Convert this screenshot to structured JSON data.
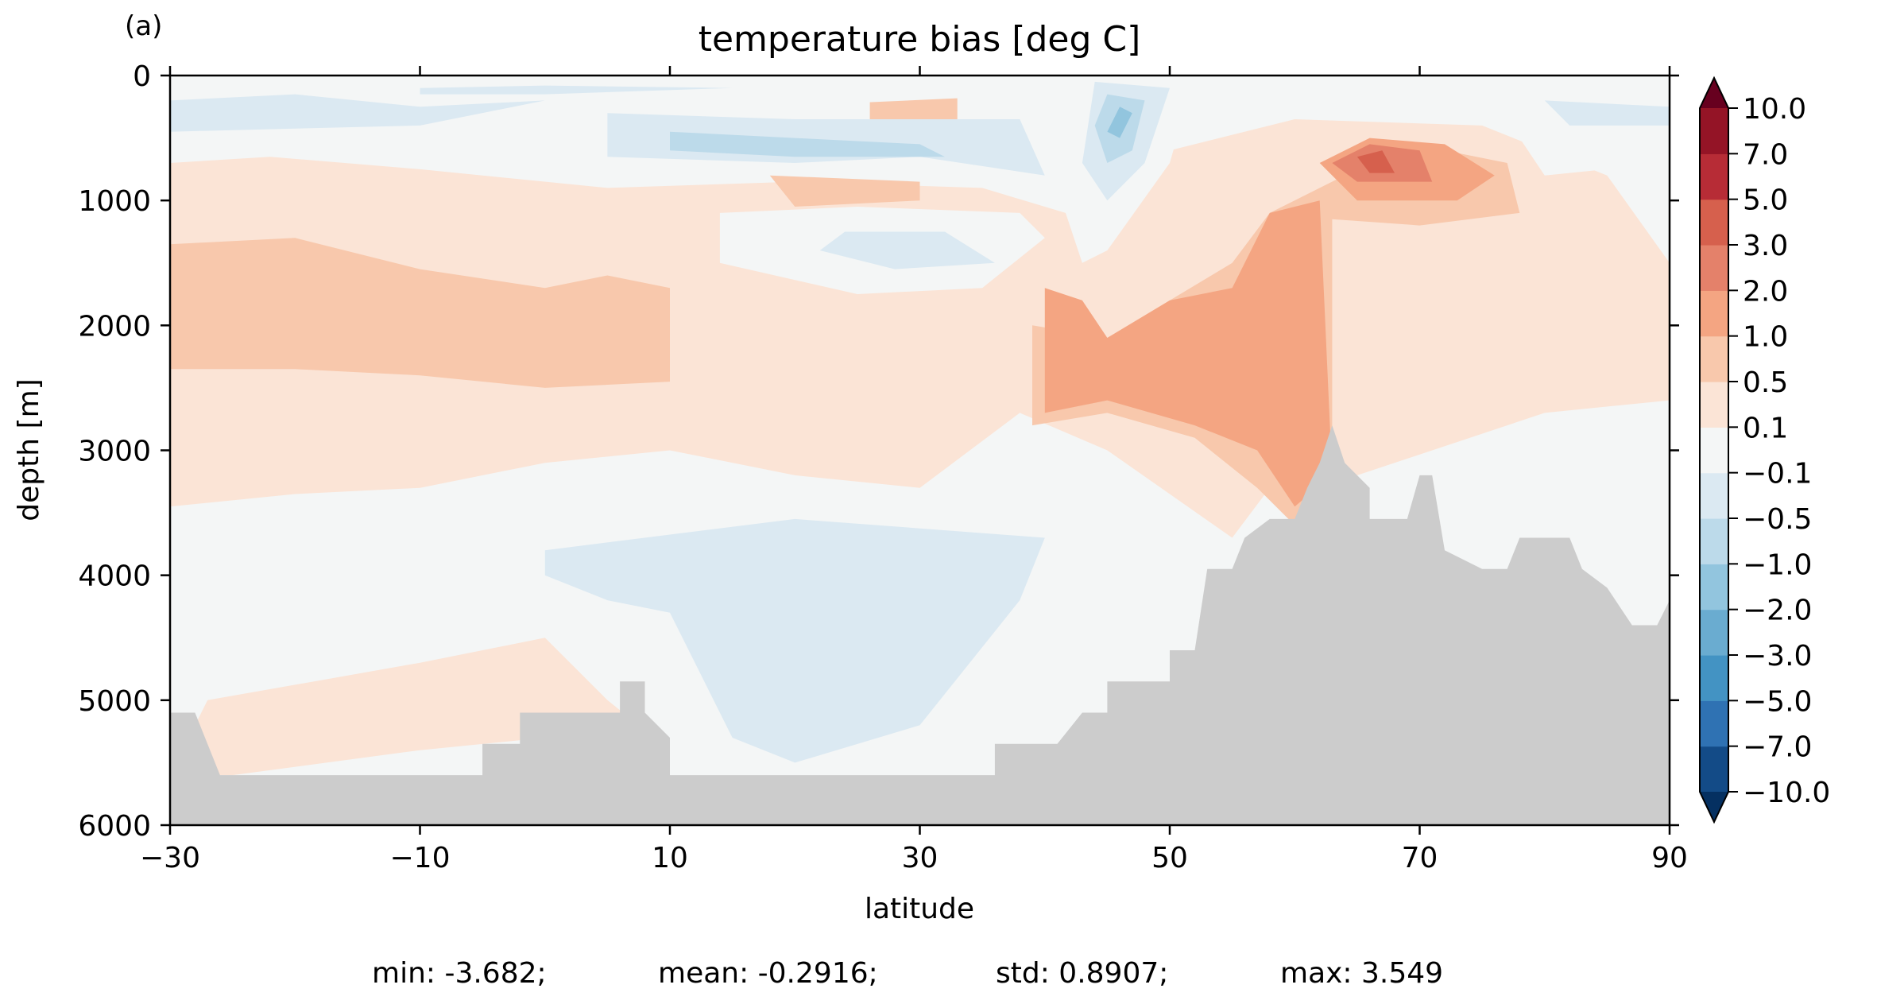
{
  "chart_data": {
    "type": "contourf",
    "panel_label": "(a)",
    "title": "temperature bias [deg C]",
    "xlabel": "latitude",
    "ylabel": "depth [m]",
    "xlim": [
      -30,
      90
    ],
    "ylim": [
      6000,
      0
    ],
    "y_inverted": true,
    "x_ticks": [
      -30,
      -10,
      10,
      30,
      50,
      70,
      90
    ],
    "x_tick_labels": [
      "−30",
      "−10",
      "10",
      "30",
      "50",
      "70",
      "90"
    ],
    "y_ticks": [
      0,
      1000,
      2000,
      3000,
      4000,
      5000,
      6000
    ],
    "y_tick_labels": [
      "0",
      "1000",
      "2000",
      "3000",
      "4000",
      "5000",
      "6000"
    ],
    "colorbar": {
      "extend": "both",
      "levels": [
        -10,
        -7,
        -5,
        -3,
        -2,
        -1,
        -0.5,
        -0.1,
        0.1,
        0.5,
        1,
        2,
        3,
        5,
        7,
        10
      ],
      "tick_labels": [
        "−10.0",
        "−7.0",
        "−5.0",
        "−3.0",
        "−2.0",
        "−1.0",
        "−0.5",
        "−0.1",
        "0.1",
        "0.5",
        "1.0",
        "2.0",
        "3.0",
        "5.0",
        "7.0",
        "10.0"
      ],
      "colors": [
        "#053061",
        "#134b87",
        "#2f72b3",
        "#4393c3",
        "#6aacd0",
        "#92c5de",
        "#bcdaea",
        "#dbe9f2",
        "#f4f6f6",
        "#fbe4d6",
        "#f8c8ac",
        "#f4a582",
        "#e4816a",
        "#d6604d",
        "#b72c36",
        "#941426",
        "#67001f"
      ]
    },
    "regions": [
      {
        "level": 0.1,
        "points": [
          [
            -30,
            700
          ],
          [
            -22,
            650
          ],
          [
            -10,
            750
          ],
          [
            5,
            900
          ],
          [
            20,
            850
          ],
          [
            35,
            900
          ],
          [
            45,
            1200
          ],
          [
            50,
            600
          ],
          [
            60,
            350
          ],
          [
            75,
            400
          ],
          [
            85,
            800
          ],
          [
            90,
            1500
          ],
          [
            90,
            2600
          ],
          [
            80,
            2700
          ],
          [
            65,
            3200
          ],
          [
            58,
            3300
          ],
          [
            55,
            3700
          ],
          [
            45,
            3000
          ],
          [
            38,
            2700
          ],
          [
            30,
            3300
          ],
          [
            20,
            3200
          ],
          [
            10,
            3000
          ],
          [
            0,
            3100
          ],
          [
            -10,
            3300
          ],
          [
            -20,
            3350
          ],
          [
            -30,
            3450
          ]
        ]
      },
      {
        "level": 0.5,
        "points": [
          [
            -30,
            1350
          ],
          [
            -20,
            1300
          ],
          [
            -10,
            1550
          ],
          [
            0,
            1700
          ],
          [
            5,
            1600
          ],
          [
            10,
            1700
          ],
          [
            10,
            2450
          ],
          [
            0,
            2500
          ],
          [
            -10,
            2400
          ],
          [
            -20,
            2350
          ],
          [
            -30,
            2350
          ]
        ]
      },
      {
        "level": 0.5,
        "points": [
          [
            39,
            2000
          ],
          [
            45,
            2100
          ],
          [
            50,
            1800
          ],
          [
            55,
            1500
          ],
          [
            58,
            1100
          ],
          [
            62,
            900
          ],
          [
            66,
            700
          ],
          [
            72,
            600
          ],
          [
            77,
            700
          ],
          [
            78,
            1100
          ],
          [
            70,
            1200
          ],
          [
            63,
            1150
          ],
          [
            63,
            3500
          ],
          [
            60,
            3600
          ],
          [
            57,
            3300
          ],
          [
            52,
            2900
          ],
          [
            45,
            2700
          ],
          [
            39,
            2800
          ]
        ]
      },
      {
        "level": 1,
        "points": [
          [
            40,
            1700
          ],
          [
            43,
            1800
          ],
          [
            45,
            2100
          ],
          [
            50,
            1800
          ],
          [
            55,
            1700
          ],
          [
            58,
            1100
          ],
          [
            62,
            1000
          ],
          [
            63,
            3200
          ],
          [
            60,
            3450
          ],
          [
            57,
            3000
          ],
          [
            52,
            2800
          ],
          [
            45,
            2600
          ],
          [
            40,
            2700
          ]
        ]
      },
      {
        "level": 1,
        "points": [
          [
            62,
            700
          ],
          [
            66,
            500
          ],
          [
            72,
            550
          ],
          [
            76,
            800
          ],
          [
            73,
            1000
          ],
          [
            65,
            1000
          ]
        ]
      },
      {
        "level": 2,
        "points": [
          [
            63,
            700
          ],
          [
            66,
            550
          ],
          [
            70,
            600
          ],
          [
            71,
            850
          ],
          [
            65,
            850
          ]
        ]
      },
      {
        "level": 3,
        "points": [
          [
            65,
            650
          ],
          [
            67,
            600
          ],
          [
            68,
            780
          ],
          [
            66,
            780
          ]
        ]
      },
      {
        "level": 0.5,
        "points": [
          [
            18,
            800
          ],
          [
            30,
            850
          ],
          [
            30,
            1000
          ],
          [
            20,
            1050
          ]
        ]
      },
      {
        "level": 0.5,
        "points": [
          [
            26,
            200
          ],
          [
            33,
            150
          ],
          [
            33,
            350
          ],
          [
            26,
            380
          ]
        ]
      },
      {
        "level": -0.1,
        "points": [
          [
            -30,
            50
          ],
          [
            -10,
            30
          ],
          [
            10,
            30
          ],
          [
            40,
            50
          ],
          [
            40,
            150
          ],
          [
            18,
            250
          ],
          [
            -10,
            500
          ],
          [
            -30,
            600
          ]
        ]
      },
      {
        "level": -0.5,
        "points": [
          [
            -30,
            200
          ],
          [
            -20,
            150
          ],
          [
            -10,
            250
          ],
          [
            0,
            200
          ],
          [
            -10,
            400
          ],
          [
            -30,
            450
          ]
        ]
      },
      {
        "level": -0.5,
        "points": [
          [
            5,
            300
          ],
          [
            20,
            350
          ],
          [
            38,
            350
          ],
          [
            40,
            800
          ],
          [
            30,
            650
          ],
          [
            20,
            700
          ],
          [
            5,
            650
          ]
        ]
      },
      {
        "level": -1,
        "points": [
          [
            10,
            450
          ],
          [
            20,
            500
          ],
          [
            30,
            550
          ],
          [
            32,
            650
          ],
          [
            20,
            650
          ],
          [
            10,
            600
          ]
        ]
      },
      {
        "level": -0.1,
        "points": [
          [
            42,
            0
          ],
          [
            52,
            0
          ],
          [
            50,
            700
          ],
          [
            45,
            1400
          ],
          [
            43,
            1500
          ],
          [
            41,
            900
          ],
          [
            40,
            300
          ]
        ]
      },
      {
        "level": -0.5,
        "points": [
          [
            44,
            50
          ],
          [
            50,
            100
          ],
          [
            48,
            700
          ],
          [
            45,
            1000
          ],
          [
            43,
            700
          ]
        ]
      },
      {
        "level": -1,
        "points": [
          [
            45,
            150
          ],
          [
            48,
            200
          ],
          [
            47,
            600
          ],
          [
            45,
            700
          ],
          [
            44,
            400
          ]
        ]
      },
      {
        "level": -2,
        "points": [
          [
            46,
            250
          ],
          [
            47,
            300
          ],
          [
            46,
            500
          ],
          [
            45,
            450
          ]
        ]
      },
      {
        "level": -0.1,
        "points": [
          [
            14,
            1100
          ],
          [
            25,
            1050
          ],
          [
            38,
            1100
          ],
          [
            40,
            1300
          ],
          [
            35,
            1700
          ],
          [
            25,
            1750
          ],
          [
            14,
            1500
          ]
        ]
      },
      {
        "level": -0.5,
        "points": [
          [
            24,
            1250
          ],
          [
            32,
            1250
          ],
          [
            36,
            1500
          ],
          [
            28,
            1550
          ],
          [
            22,
            1400
          ]
        ]
      },
      {
        "level": -0.5,
        "points": [
          [
            -10,
            100
          ],
          [
            0,
            80
          ],
          [
            15,
            100
          ],
          [
            0,
            150
          ],
          [
            -10,
            150
          ]
        ]
      },
      {
        "level": -0.5,
        "points": [
          [
            0,
            3800
          ],
          [
            20,
            3550
          ],
          [
            40,
            3700
          ],
          [
            38,
            4200
          ],
          [
            30,
            5200
          ],
          [
            20,
            5500
          ],
          [
            15,
            5300
          ],
          [
            10,
            4300
          ],
          [
            5,
            4200
          ],
          [
            0,
            4000
          ]
        ]
      },
      {
        "level": 0.1,
        "points": [
          [
            -27,
            5000
          ],
          [
            -10,
            4700
          ],
          [
            0,
            4500
          ],
          [
            5,
            5000
          ],
          [
            10,
            5400
          ],
          [
            8,
            5500
          ],
          [
            0,
            5300
          ],
          [
            -10,
            5400
          ],
          [
            -25,
            5600
          ],
          [
            -30,
            5600
          ]
        ]
      },
      {
        "level": -0.1,
        "points": [
          [
            78,
            100
          ],
          [
            90,
            200
          ],
          [
            90,
            700
          ],
          [
            80,
            800
          ],
          [
            78,
            500
          ]
        ]
      },
      {
        "level": -0.5,
        "points": [
          [
            80,
            200
          ],
          [
            90,
            250
          ],
          [
            90,
            400
          ],
          [
            82,
            400
          ]
        ]
      }
    ],
    "bathymetry_profile": [
      [
        -30,
        5100
      ],
      [
        -28,
        5100
      ],
      [
        -26,
        5600
      ],
      [
        -20,
        5600
      ],
      [
        -10,
        5600
      ],
      [
        -5,
        5600
      ],
      [
        -5,
        5350
      ],
      [
        -2,
        5350
      ],
      [
        -2,
        5100
      ],
      [
        2,
        5100
      ],
      [
        6,
        5100
      ],
      [
        6,
        4850
      ],
      [
        8,
        4850
      ],
      [
        8,
        5100
      ],
      [
        10,
        5300
      ],
      [
        10,
        5600
      ],
      [
        20,
        5600
      ],
      [
        30,
        5600
      ],
      [
        36,
        5600
      ],
      [
        36,
        5350
      ],
      [
        41,
        5350
      ],
      [
        43,
        5100
      ],
      [
        45,
        5100
      ],
      [
        45,
        4850
      ],
      [
        48,
        4850
      ],
      [
        48,
        4850
      ],
      [
        50,
        4850
      ],
      [
        50,
        4600
      ],
      [
        52,
        4600
      ],
      [
        53,
        3950
      ],
      [
        55,
        3950
      ],
      [
        56,
        3700
      ],
      [
        58,
        3550
      ],
      [
        60,
        3550
      ],
      [
        61,
        3300
      ],
      [
        62,
        3100
      ],
      [
        63,
        2800
      ],
      [
        64,
        3100
      ],
      [
        66,
        3300
      ],
      [
        66,
        3550
      ],
      [
        69,
        3550
      ],
      [
        70,
        3200
      ],
      [
        71,
        3200
      ],
      [
        72,
        3800
      ],
      [
        75,
        3950
      ],
      [
        77,
        3950
      ],
      [
        78,
        3700
      ],
      [
        82,
        3700
      ],
      [
        83,
        3950
      ],
      [
        85,
        4100
      ],
      [
        87,
        4400
      ],
      [
        89,
        4400
      ],
      [
        90,
        4200
      ],
      [
        90,
        6000
      ],
      [
        -30,
        6000
      ]
    ],
    "bathymetry_color": "#cccccc",
    "stats": {
      "min": "min: -3.682;",
      "mean": "mean: -0.2916;",
      "std": "std: 0.8907;",
      "max": "max: 3.549"
    }
  }
}
